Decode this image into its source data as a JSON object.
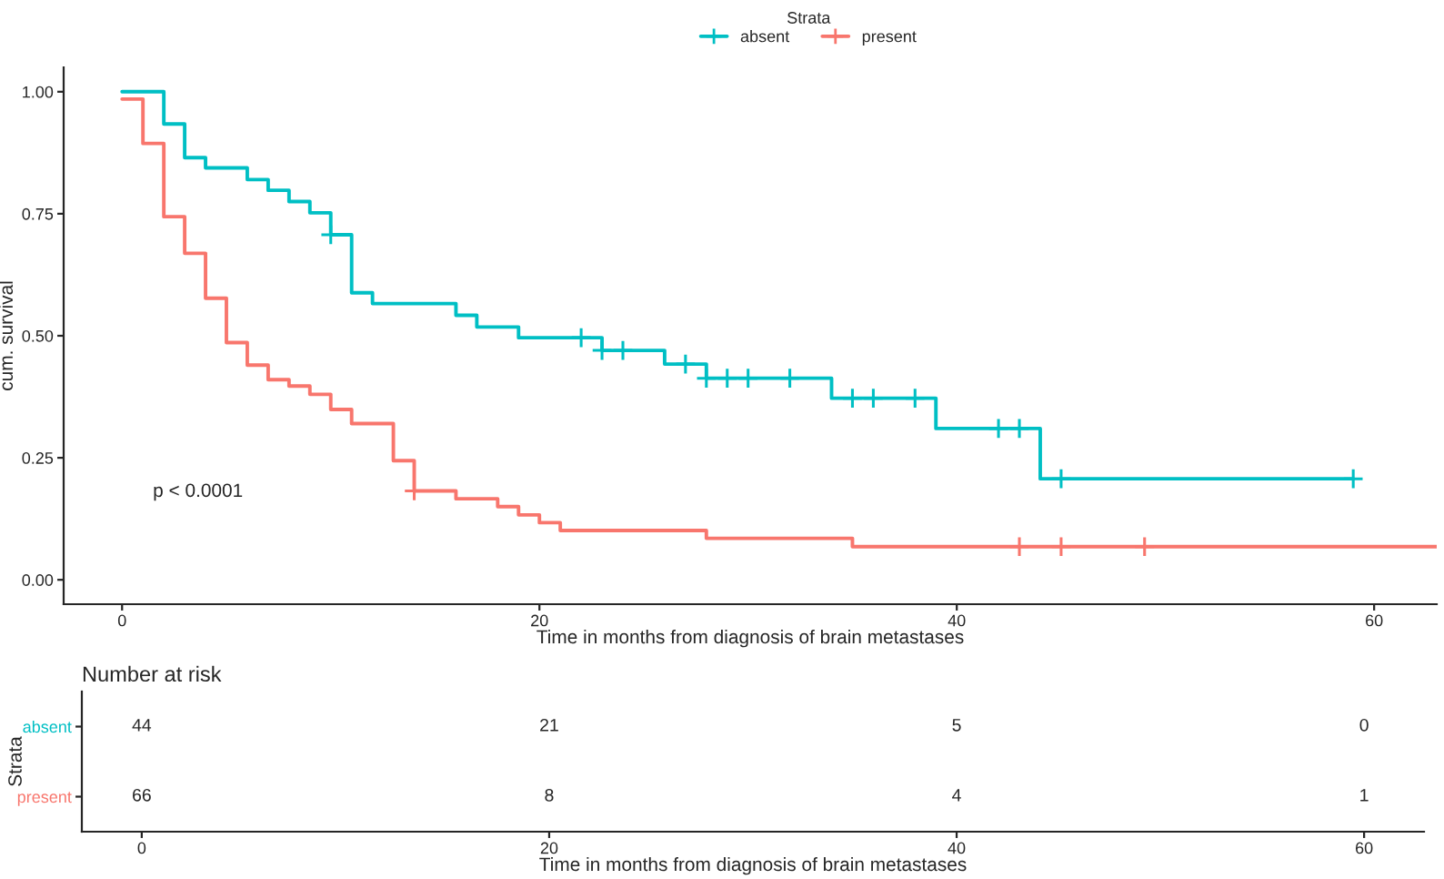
{
  "chart_data": [
    {
      "type": "step",
      "xlabel": "Time in months from diagnosis of brain metastases",
      "ylabel": "cum. survival",
      "legend_title": "Strata",
      "legend": "top",
      "grid": false,
      "xlim": [
        -2.8,
        63
      ],
      "xticks": [
        0,
        20,
        40,
        60
      ],
      "ylim": [
        -0.05,
        1.05
      ],
      "yticks": [
        {
          "value": 0,
          "label": "0.00"
        },
        {
          "value": 0.25,
          "label": "0.25"
        },
        {
          "value": 0.5,
          "label": "0.50"
        },
        {
          "value": 0.75,
          "label": "0.75"
        },
        {
          "value": 1,
          "label": "1.00"
        }
      ],
      "annotations": [
        "p < 0.0001"
      ],
      "series": [
        {
          "name": "absent",
          "color": "#00bfc4",
          "x": [
            0,
            2,
            3,
            4,
            6,
            7,
            8,
            9,
            10,
            11,
            12,
            16,
            17,
            19,
            23,
            26,
            28,
            34,
            39,
            44,
            59
          ],
          "values": [
            1.0,
            0.934,
            0.865,
            0.844,
            0.82,
            0.798,
            0.775,
            0.752,
            0.707,
            0.588,
            0.566,
            0.542,
            0.518,
            0.496,
            0.47,
            0.442,
            0.413,
            0.372,
            0.31,
            0.207,
            0.207
          ]
        },
        {
          "name": "present",
          "color": "#f8766d",
          "x": [
            0,
            1,
            2,
            3,
            4,
            5,
            6,
            7,
            8,
            9,
            10,
            11,
            13,
            14,
            16,
            18,
            19,
            20,
            21,
            28,
            35,
            63
          ],
          "values": [
            0.985,
            0.894,
            0.744,
            0.669,
            0.577,
            0.486,
            0.44,
            0.41,
            0.397,
            0.38,
            0.349,
            0.32,
            0.244,
            0.182,
            0.166,
            0.15,
            0.133,
            0.117,
            0.101,
            0.085,
            0.068,
            0.068
          ]
        },
        {
          "type": "scatter",
          "marker": "cross",
          "color": "#00bfc4",
          "x": [
            10,
            22,
            23,
            24,
            27,
            28,
            29,
            30,
            32,
            35,
            36,
            38,
            42,
            43,
            45,
            59
          ],
          "values": [
            0.707,
            0.496,
            0.47,
            0.47,
            0.442,
            0.413,
            0.413,
            0.413,
            0.413,
            0.372,
            0.372,
            0.372,
            0.31,
            0.31,
            0.207,
            0.207
          ]
        },
        {
          "type": "scatter",
          "marker": "cross",
          "color": "#f8766d",
          "x": [
            14,
            43,
            45,
            49
          ],
          "values": [
            0.182,
            0.068,
            0.068,
            0.068
          ]
        }
      ]
    },
    {
      "type": "heatmap",
      "title": "Number at risk",
      "xlabel": "Time in months from diagnosis of brain metastases",
      "ylabel": "Strata",
      "data_labels": true,
      "categories": [
        "0",
        "20",
        "40",
        "60"
      ],
      "y_categories": [
        "absent",
        "present"
      ],
      "cells": [
        [
          44,
          21,
          5,
          0
        ],
        [
          66,
          8,
          4,
          1
        ]
      ]
    }
  ]
}
